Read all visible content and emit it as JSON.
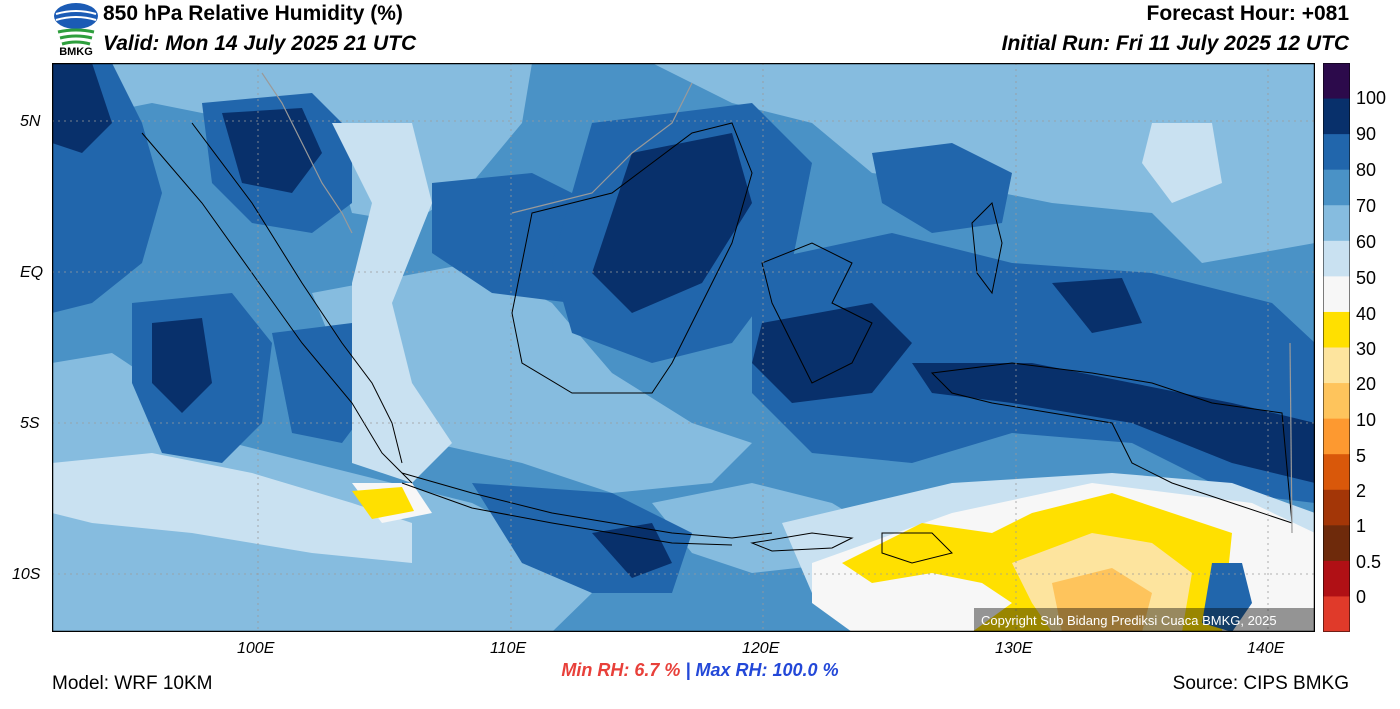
{
  "header": {
    "title": "850 hPa Relative Humidity (%)",
    "valid": "Valid: Mon 14 July 2025 21 UTC",
    "forecast_hour": "Forecast Hour: +081",
    "initial_run": "Initial Run: Fri 11 July 2025 12 UTC",
    "logo_text": "BMKG"
  },
  "map": {
    "lat_labels": [
      "5N",
      "EQ",
      "5S",
      "10S"
    ],
    "lon_labels": [
      "100E",
      "110E",
      "120E",
      "130E",
      "140E"
    ],
    "copyright": "Copyright Sub Bidang Prediksi Cuaca BMKG, 2025",
    "colors": {
      "rh_100": "#2c0a4b",
      "rh_90": "#08306b",
      "rh_80": "#2166ac",
      "rh_70": "#4a92c6",
      "rh_60": "#86bcdf",
      "rh_50": "#c9e1f1",
      "rh_40": "#f7f7f7",
      "rh_30": "#ffe000",
      "rh_20": "#fde49e",
      "coast": "#000000",
      "border": "#9a9a9a"
    }
  },
  "colorbar": {
    "labels": [
      "100",
      "90",
      "80",
      "70",
      "60",
      "50",
      "40",
      "30",
      "20",
      "10",
      "5",
      "2",
      "1",
      "0.5",
      "0"
    ],
    "colors": [
      "#2c0a4b",
      "#08306b",
      "#2166ac",
      "#4a92c6",
      "#86bcdf",
      "#c9e1f1",
      "#f7f7f7",
      "#ffe000",
      "#fde49e",
      "#fec45c",
      "#fd9930",
      "#d9580a",
      "#a33607",
      "#6e2a0b",
      "#b01015",
      "#e03a2a"
    ]
  },
  "footer": {
    "model": "Model: WRF 10KM",
    "min_label": "Min RH:",
    "min_value": "6.7 %",
    "separator": "|",
    "max_text": "Max RH: 100.0 %",
    "source": "Source: CIPS BMKG",
    "min_color": "#e8403a",
    "max_color": "#2348d8"
  }
}
